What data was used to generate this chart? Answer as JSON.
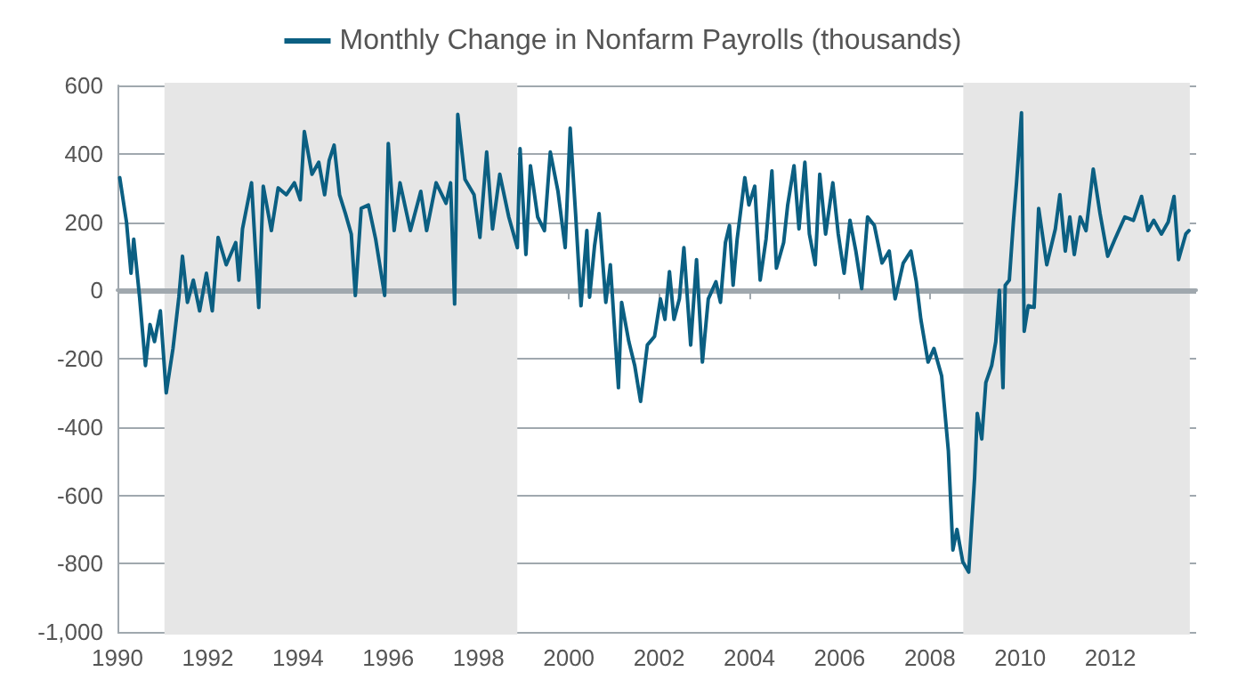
{
  "chart_data": {
    "type": "line",
    "series": [
      {
        "name": "Monthly Change in Nonfarm Payrolls (thousands)",
        "color": "#0b5f82",
        "x": [
          1990.05,
          1990.2,
          1990.3,
          1990.36,
          1990.49,
          1990.62,
          1990.72,
          1990.82,
          1990.95,
          1991.08,
          1991.23,
          1991.36,
          1991.44,
          1991.55,
          1991.68,
          1991.82,
          1991.97,
          1992.1,
          1992.23,
          1992.41,
          1992.62,
          1992.69,
          1992.77,
          1992.97,
          1993.13,
          1993.23,
          1993.41,
          1993.56,
          1993.74,
          1993.92,
          1994.05,
          1994.14,
          1994.31,
          1994.46,
          1994.59,
          1994.69,
          1994.8,
          1994.92,
          1995.05,
          1995.18,
          1995.27,
          1995.4,
          1995.56,
          1995.72,
          1995.92,
          1996.0,
          1996.13,
          1996.26,
          1996.49,
          1996.72,
          1996.85,
          1997.06,
          1997.28,
          1997.38,
          1997.47,
          1997.54,
          1997.7,
          1997.9,
          1998.03,
          1998.18,
          1998.31,
          1998.47,
          1998.67,
          1998.86,
          1998.92,
          1999.05,
          1999.15,
          1999.31,
          1999.46,
          1999.59,
          1999.76,
          1999.92,
          2000.03,
          2000.15,
          2000.27,
          2000.4,
          2000.46,
          2000.57,
          2000.67,
          2000.82,
          2000.92,
          2001.1,
          2001.17,
          2001.33,
          2001.46,
          2001.59,
          2001.74,
          2001.9,
          2002.03,
          2002.13,
          2002.23,
          2002.33,
          2002.45,
          2002.55,
          2002.7,
          2002.83,
          2002.96,
          2003.09,
          2003.26,
          2003.36,
          2003.47,
          2003.56,
          2003.64,
          2003.73,
          2003.9,
          2003.99,
          2004.12,
          2004.24,
          2004.37,
          2004.5,
          2004.6,
          2004.76,
          2004.85,
          2004.99,
          2005.1,
          2005.23,
          2005.33,
          2005.46,
          2005.56,
          2005.69,
          2005.85,
          2005.97,
          2006.1,
          2006.23,
          2006.36,
          2006.49,
          2006.62,
          2006.77,
          2006.94,
          2007.1,
          2007.23,
          2007.41,
          2007.58,
          2007.7,
          2007.8,
          2007.96,
          2008.09,
          2008.26,
          2008.41,
          2008.51,
          2008.6,
          2008.73,
          2008.86,
          2008.99,
          2009.05,
          2009.15,
          2009.24,
          2009.37,
          2009.46,
          2009.54,
          2009.62,
          2009.67,
          2009.76,
          2009.85,
          2009.92,
          2010.03,
          2010.09,
          2010.18,
          2010.31,
          2010.41,
          2010.59,
          2010.78,
          2010.88,
          2011.0,
          2011.1,
          2011.2,
          2011.33,
          2011.46,
          2011.62,
          2011.77,
          2011.94,
          2012.1,
          2012.32,
          2012.51,
          2012.69,
          2012.83,
          2012.96,
          2013.13,
          2013.28,
          2013.41,
          2013.51,
          2013.67,
          2013.74
        ],
        "values": [
          330,
          200,
          50,
          150,
          -20,
          -220,
          -100,
          -150,
          -60,
          -300,
          -170,
          -20,
          100,
          -35,
          30,
          -60,
          50,
          -60,
          155,
          75,
          140,
          30,
          180,
          315,
          -50,
          305,
          175,
          300,
          280,
          315,
          265,
          465,
          340,
          375,
          280,
          380,
          425,
          280,
          225,
          165,
          -15,
          240,
          250,
          150,
          -15,
          430,
          175,
          315,
          175,
          290,
          175,
          315,
          255,
          315,
          -40,
          515,
          325,
          280,
          155,
          405,
          180,
          340,
          215,
          125,
          415,
          105,
          365,
          215,
          175,
          405,
          290,
          125,
          475,
          225,
          -45,
          175,
          -20,
          130,
          225,
          -35,
          75,
          -285,
          -35,
          -150,
          -220,
          -325,
          -160,
          -135,
          -25,
          -85,
          55,
          -85,
          -25,
          125,
          -160,
          90,
          -210,
          -25,
          25,
          -35,
          140,
          190,
          15,
          150,
          330,
          250,
          305,
          30,
          150,
          350,
          65,
          140,
          250,
          365,
          180,
          375,
          165,
          75,
          340,
          165,
          315,
          165,
          50,
          205,
          115,
          5,
          215,
          190,
          80,
          115,
          -25,
          80,
          115,
          25,
          -85,
          -210,
          -170,
          -250,
          -470,
          -760,
          -700,
          -795,
          -825,
          -550,
          -360,
          -435,
          -270,
          -220,
          -150,
          0,
          -285,
          15,
          30,
          200,
          315,
          520,
          -120,
          -45,
          -50,
          240,
          75,
          180,
          280,
          115,
          215,
          105,
          215,
          175,
          355,
          225,
          100,
          150,
          215,
          205,
          275,
          175,
          205,
          165,
          200,
          275,
          90,
          165,
          175
        ]
      }
    ],
    "xlim": [
      1990,
      2013.9
    ],
    "xticks": [
      1990,
      1992,
      1994,
      1996,
      1998,
      2000,
      2002,
      2004,
      2006,
      2008,
      2010,
      2012
    ],
    "ylim": [
      -1000,
      600
    ],
    "yticks": [
      {
        "value": -1000,
        "label": "-1,000"
      },
      -800,
      -600,
      -400,
      -200,
      0,
      200,
      400,
      600
    ],
    "bands": [
      {
        "axis": "x",
        "from": 1991.1,
        "to": 1998.8,
        "color": "#e6e6e6"
      },
      {
        "axis": "x",
        "from": 2008.8,
        "to": 2013.7,
        "color": "#e6e6e6"
      }
    ],
    "ref_lines": [
      {
        "axis": "y",
        "value": 0,
        "color": "#a0a8ae"
      }
    ],
    "grid": "y",
    "legend": "top",
    "marker": "none",
    "line_style": "solid"
  }
}
